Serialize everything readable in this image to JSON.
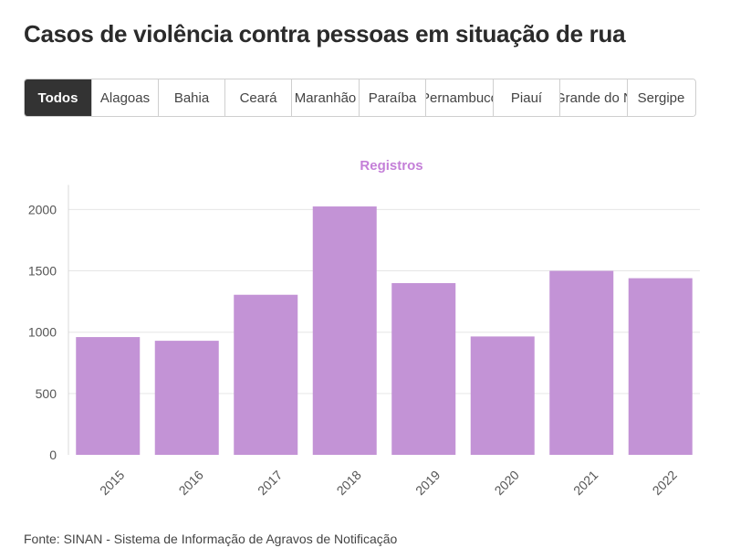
{
  "title": "Casos de violência contra pessoas em situação de rua",
  "tabs": [
    {
      "label": "Todos",
      "active": true
    },
    {
      "label": "Alagoas",
      "active": false
    },
    {
      "label": "Bahia",
      "active": false
    },
    {
      "label": "Ceará",
      "active": false
    },
    {
      "label": "Maranhão",
      "active": false
    },
    {
      "label": "Paraíba",
      "active": false
    },
    {
      "label": "Pernambuco",
      "active": false
    },
    {
      "label": "Piauí",
      "active": false
    },
    {
      "label": "Rio Grande do Norte",
      "active": false
    },
    {
      "label": "Sergipe",
      "active": false
    }
  ],
  "source": "Fonte: SINAN - Sistema de Informação de Agravos de Notificação",
  "colors": {
    "bar": "#c393d6",
    "series_title": "#c47fd8",
    "active_tab": "#333333",
    "grid": "#e6e6e6"
  },
  "chart_data": {
    "type": "bar",
    "title": "Registros",
    "categories": [
      "2015",
      "2016",
      "2017",
      "2018",
      "2019",
      "2020",
      "2021",
      "2022"
    ],
    "values": [
      960,
      930,
      1305,
      2025,
      1400,
      965,
      1500,
      1440
    ],
    "yticks": [
      0,
      500,
      1000,
      1500,
      2000
    ],
    "ylim": [
      0,
      2200
    ],
    "xlabel": "",
    "ylabel": "",
    "grid": true
  }
}
